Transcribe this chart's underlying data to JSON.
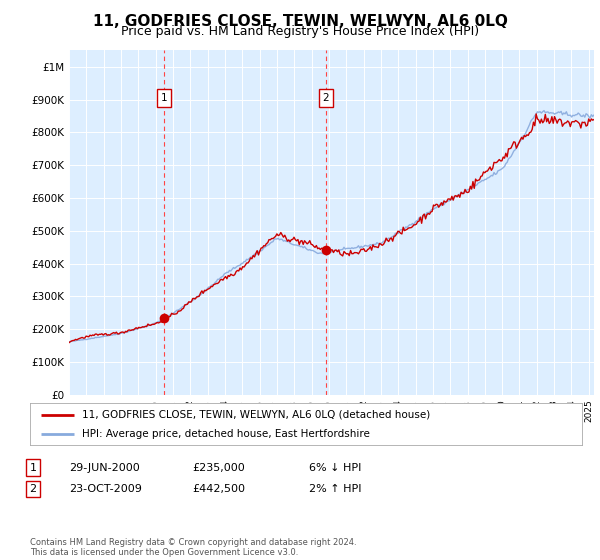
{
  "title": "11, GODFRIES CLOSE, TEWIN, WELWYN, AL6 0LQ",
  "subtitle": "Price paid vs. HM Land Registry's House Price Index (HPI)",
  "title_fontsize": 11,
  "subtitle_fontsize": 9,
  "background_color": "#ffffff",
  "plot_bg_color": "#ddeeff",
  "grid_color": "#ffffff",
  "ylim": [
    0,
    1050000
  ],
  "yticks": [
    0,
    100000,
    200000,
    300000,
    400000,
    500000,
    600000,
    700000,
    800000,
    900000,
    1000000
  ],
  "ytick_labels": [
    "£0",
    "£100K",
    "£200K",
    "£300K",
    "£400K",
    "£500K",
    "£600K",
    "£700K",
    "£800K",
    "£900K",
    "£1M"
  ],
  "sale1_date": 2000.49,
  "sale1_price": 235000,
  "sale1_label": "1",
  "sale2_date": 2009.81,
  "sale2_price": 442500,
  "sale2_label": "2",
  "legend_line1": "11, GODFRIES CLOSE, TEWIN, WELWYN, AL6 0LQ (detached house)",
  "legend_line2": "HPI: Average price, detached house, East Hertfordshire",
  "table_row1": [
    "1",
    "29-JUN-2000",
    "£235,000",
    "6% ↓ HPI"
  ],
  "table_row2": [
    "2",
    "23-OCT-2009",
    "£442,500",
    "2% ↑ HPI"
  ],
  "footer": "Contains HM Land Registry data © Crown copyright and database right 2024.\nThis data is licensed under the Open Government Licence v3.0.",
  "line_red_color": "#cc0000",
  "line_blue_color": "#88aadd",
  "sale_marker_color": "#cc0000",
  "xlim_start": 1995,
  "xlim_end": 2025.3
}
